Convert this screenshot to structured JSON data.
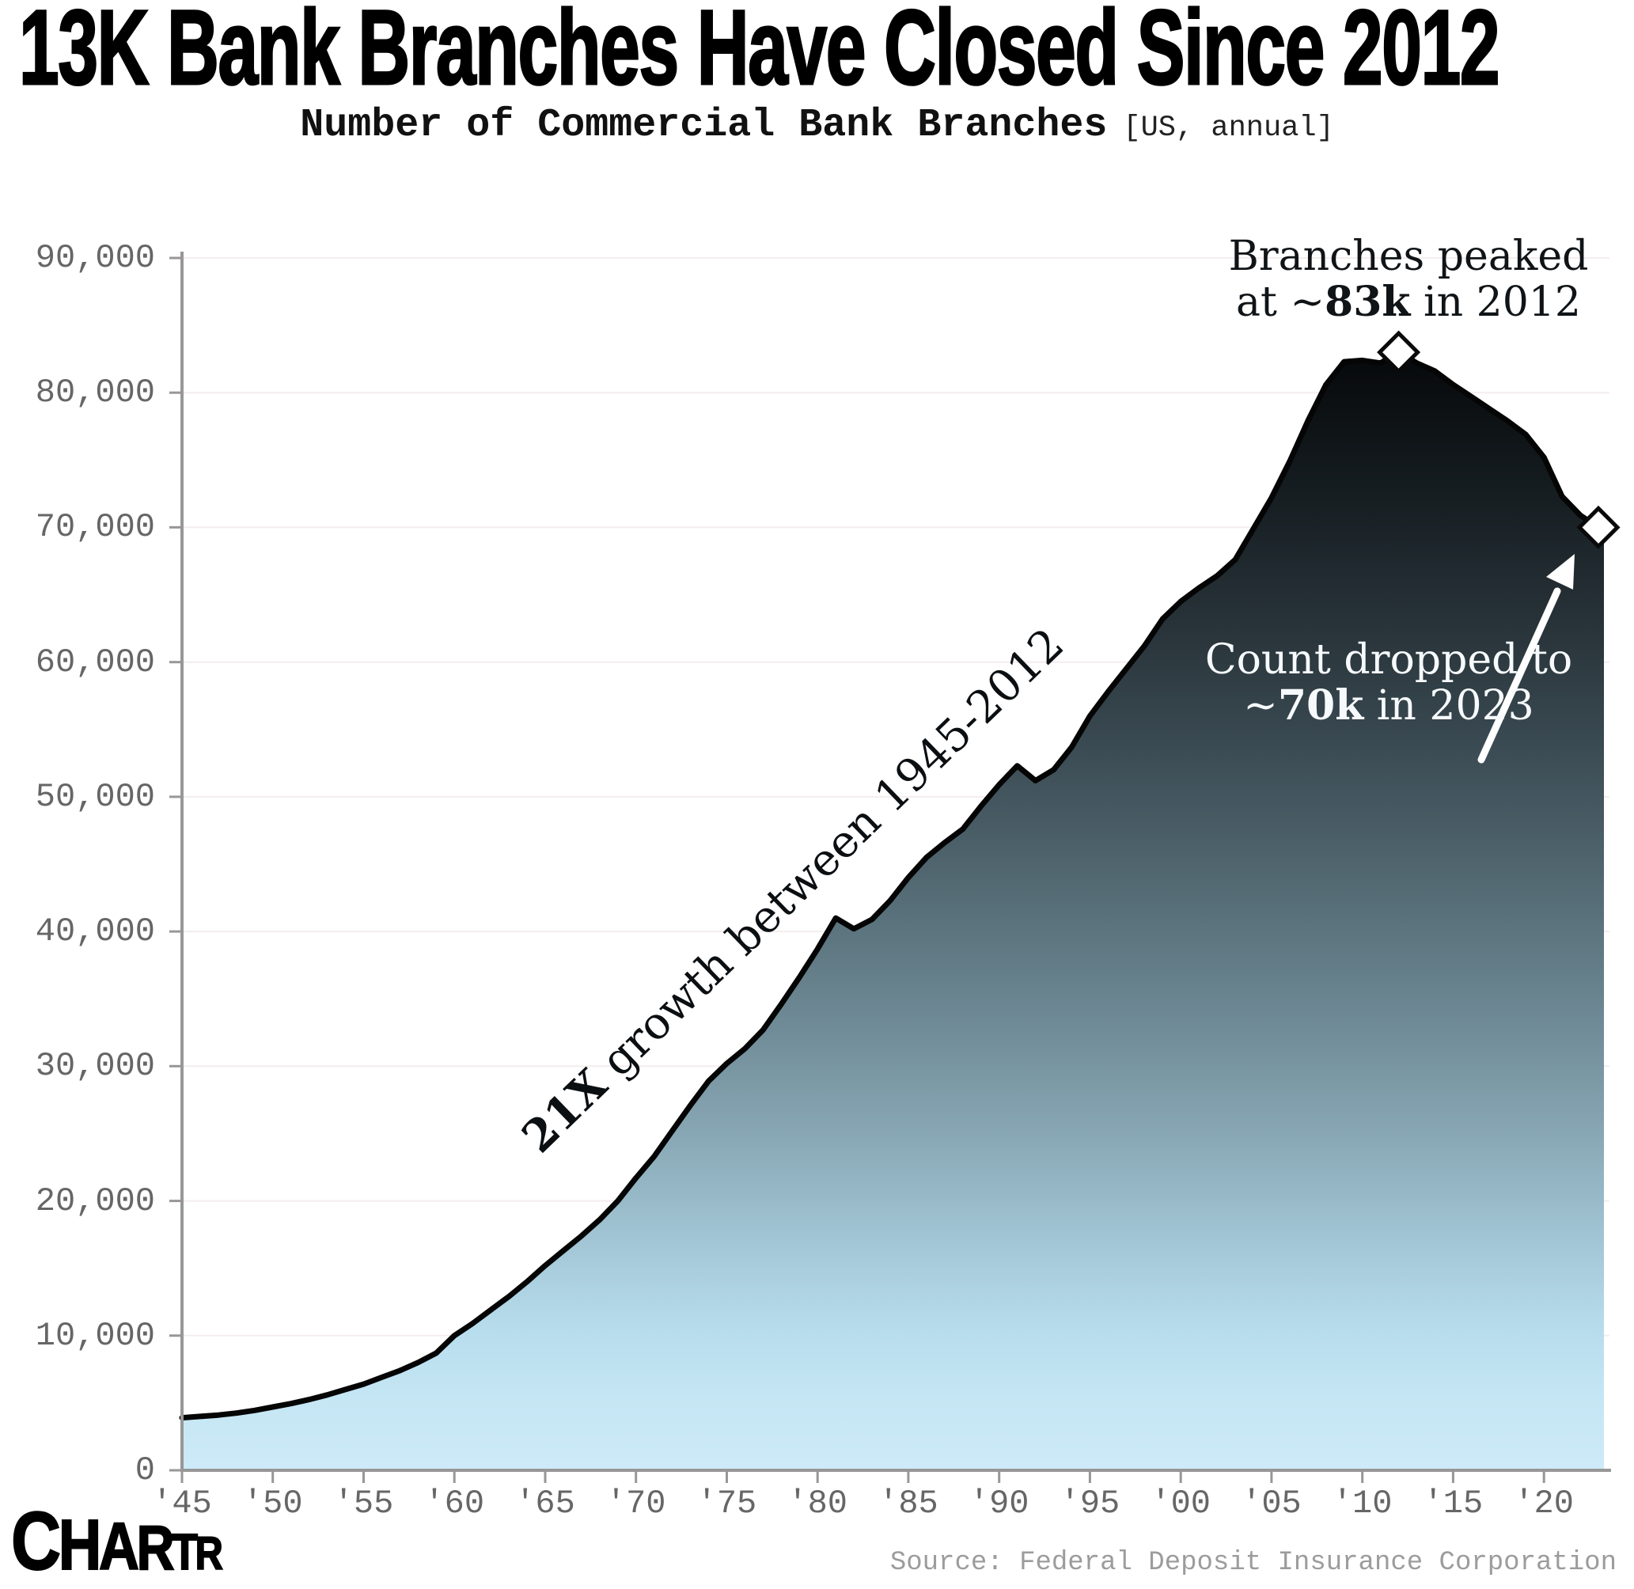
{
  "title": "13K Bank Branches Have Closed Since 2012",
  "subtitle": {
    "main": "Number of Commercial Bank Branches",
    "qualifier": "[US, annual]"
  },
  "annotations": {
    "peak": {
      "line1": "Branches peaked",
      "line2_pre": "at ~",
      "line2_bold": "83k",
      "line2_post": " in 2012"
    },
    "drop": {
      "line1": "Count dropped to",
      "line2_pre": "~",
      "line2_bold": "70k",
      "line2_post": " in 2023"
    },
    "growth": {
      "bold": "21X",
      "rest": " growth between 1945-2012"
    }
  },
  "footer": {
    "logo": "CHARTR",
    "source": "Source: Federal Deposit Insurance Corporation"
  },
  "colors": {
    "background": "#ffffff",
    "title": "#000000",
    "curve": "#050505",
    "axis": "#979797",
    "tick": "#979797",
    "tick_label": "#666666",
    "gridline": "#f4eded",
    "source": "#9c9c9c",
    "marker_fill": "#ffffff",
    "marker_stroke": "#0a0a0a",
    "annotation_dark": "#101417",
    "annotation_light": "#f6fafc",
    "arrow": "#ffffff",
    "area_gradient": [
      [
        "0",
        "#000000"
      ],
      [
        "0.08",
        "#07090b"
      ],
      [
        "0.16",
        "#11171a"
      ],
      [
        "0.24",
        "#1d262b"
      ],
      [
        "0.32",
        "#2b373d"
      ],
      [
        "0.40",
        "#3a4a52"
      ],
      [
        "0.48",
        "#4b5f68"
      ],
      [
        "0.56",
        "#5d7680"
      ],
      [
        "0.64",
        "#718d99"
      ],
      [
        "0.72",
        "#87a6b3"
      ],
      [
        "0.80",
        "#9fc2d1"
      ],
      [
        "0.88",
        "#b6dcec"
      ],
      [
        "0.94",
        "#c5e6f4"
      ],
      [
        "1",
        "#cdeaf8"
      ]
    ]
  },
  "chart_data": {
    "type": "area",
    "title": "Number of Commercial Bank Branches",
    "xlabel": "",
    "ylabel": "",
    "x": [
      1945,
      1946,
      1947,
      1948,
      1949,
      1950,
      1951,
      1952,
      1953,
      1954,
      1955,
      1956,
      1957,
      1958,
      1959,
      1960,
      1961,
      1962,
      1963,
      1964,
      1965,
      1966,
      1967,
      1968,
      1969,
      1970,
      1971,
      1972,
      1973,
      1974,
      1975,
      1976,
      1977,
      1978,
      1979,
      1980,
      1981,
      1982,
      1983,
      1984,
      1985,
      1986,
      1987,
      1988,
      1989,
      1990,
      1991,
      1992,
      1993,
      1994,
      1995,
      1996,
      1997,
      1998,
      1999,
      2000,
      2001,
      2002,
      2003,
      2004,
      2005,
      2006,
      2007,
      2008,
      2009,
      2010,
      2011,
      2012,
      2013,
      2014,
      2015,
      2016,
      2017,
      2018,
      2019,
      2020,
      2021,
      2022,
      2023
    ],
    "values": [
      3900,
      4000,
      4100,
      4250,
      4450,
      4700,
      4950,
      5250,
      5600,
      6000,
      6400,
      6900,
      7400,
      8000,
      8700,
      10000,
      10900,
      11900,
      12900,
      14000,
      15200,
      16300,
      17400,
      18600,
      20000,
      21700,
      23300,
      25200,
      27100,
      28900,
      30200,
      31300,
      32700,
      34600,
      36600,
      38700,
      41000,
      40200,
      40900,
      42300,
      44000,
      45500,
      46600,
      47600,
      49300,
      50900,
      52300,
      51200,
      52000,
      53700,
      56000,
      57800,
      59500,
      61200,
      63200,
      64500,
      65500,
      66400,
      67600,
      69900,
      72200,
      74900,
      77900,
      80600,
      82300,
      82400,
      82200,
      83000,
      82200,
      81600,
      80600,
      79700,
      78800,
      77900,
      76900,
      75200,
      72300,
      70900,
      70000
    ],
    "ylim": [
      0,
      90000
    ],
    "xlim": [
      1945,
      2023
    ],
    "grid": "horizontal",
    "legend": "none",
    "yticks": [
      0,
      10000,
      20000,
      30000,
      40000,
      50000,
      60000,
      70000,
      80000,
      90000
    ],
    "ytick_labels": [
      "0",
      "10,000",
      "20,000",
      "30,000",
      "40,000",
      "50,000",
      "60,000",
      "70,000",
      "80,000",
      "90,000"
    ],
    "xticks": [
      1945,
      1950,
      1955,
      1960,
      1965,
      1970,
      1975,
      1980,
      1985,
      1990,
      1995,
      2000,
      2005,
      2010,
      2015,
      2020
    ],
    "xtick_labels": [
      "'45",
      "'50",
      "'55",
      "'60",
      "'65",
      "'70",
      "'75",
      "'80",
      "'85",
      "'90",
      "'95",
      "'00",
      "'05",
      "'10",
      "'15",
      "'20"
    ],
    "markers": [
      {
        "year": 2012,
        "value": 83000,
        "note": "Branches peaked at ~83k in 2012"
      },
      {
        "year": 2023,
        "value": 70000,
        "note": "Count dropped to ~70k in 2023"
      }
    ]
  }
}
